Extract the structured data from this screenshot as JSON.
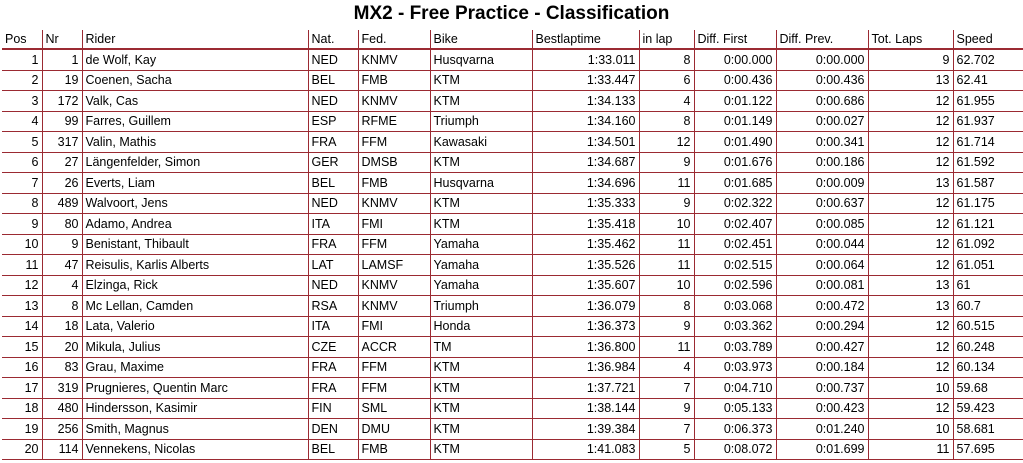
{
  "title": "MX2 - Free Practice - Classification",
  "headers": [
    "Pos",
    "Nr",
    "Rider",
    "Nat.",
    "Fed.",
    "Bike",
    "Bestlaptime",
    "in lap",
    "Diff. First",
    "Diff. Prev.",
    "Tot. Laps",
    "Speed"
  ],
  "rows": [
    [
      "1",
      "1",
      "de Wolf, Kay",
      "NED",
      "KNMV",
      "Husqvarna",
      "1:33.011",
      "8",
      "0:00.000",
      "0:00.000",
      "9",
      "62.702"
    ],
    [
      "2",
      "19",
      "Coenen, Sacha",
      "BEL",
      "FMB",
      "KTM",
      "1:33.447",
      "6",
      "0:00.436",
      "0:00.436",
      "13",
      "62.41"
    ],
    [
      "3",
      "172",
      "Valk, Cas",
      "NED",
      "KNMV",
      "KTM",
      "1:34.133",
      "4",
      "0:01.122",
      "0:00.686",
      "12",
      "61.955"
    ],
    [
      "4",
      "99",
      "Farres, Guillem",
      "ESP",
      "RFME",
      "Triumph",
      "1:34.160",
      "8",
      "0:01.149",
      "0:00.027",
      "12",
      "61.937"
    ],
    [
      "5",
      "317",
      "Valin, Mathis",
      "FRA",
      "FFM",
      "Kawasaki",
      "1:34.501",
      "12",
      "0:01.490",
      "0:00.341",
      "12",
      "61.714"
    ],
    [
      "6",
      "27",
      "Längenfelder, Simon",
      "GER",
      "DMSB",
      "KTM",
      "1:34.687",
      "9",
      "0:01.676",
      "0:00.186",
      "12",
      "61.592"
    ],
    [
      "7",
      "26",
      "Everts, Liam",
      "BEL",
      "FMB",
      "Husqvarna",
      "1:34.696",
      "11",
      "0:01.685",
      "0:00.009",
      "13",
      "61.587"
    ],
    [
      "8",
      "489",
      "Walvoort, Jens",
      "NED",
      "KNMV",
      "KTM",
      "1:35.333",
      "9",
      "0:02.322",
      "0:00.637",
      "12",
      "61.175"
    ],
    [
      "9",
      "80",
      "Adamo, Andrea",
      "ITA",
      "FMI",
      "KTM",
      "1:35.418",
      "10",
      "0:02.407",
      "0:00.085",
      "12",
      "61.121"
    ],
    [
      "10",
      "9",
      "Benistant, Thibault",
      "FRA",
      "FFM",
      "Yamaha",
      "1:35.462",
      "11",
      "0:02.451",
      "0:00.044",
      "12",
      "61.092"
    ],
    [
      "11",
      "47",
      "Reisulis, Karlis Alberts",
      "LAT",
      "LAMSF",
      "Yamaha",
      "1:35.526",
      "11",
      "0:02.515",
      "0:00.064",
      "12",
      "61.051"
    ],
    [
      "12",
      "4",
      "Elzinga, Rick",
      "NED",
      "KNMV",
      "Yamaha",
      "1:35.607",
      "10",
      "0:02.596",
      "0:00.081",
      "13",
      "61"
    ],
    [
      "13",
      "8",
      "Mc Lellan, Camden",
      "RSA",
      "KNMV",
      "Triumph",
      "1:36.079",
      "8",
      "0:03.068",
      "0:00.472",
      "13",
      "60.7"
    ],
    [
      "14",
      "18",
      "Lata, Valerio",
      "ITA",
      "FMI",
      "Honda",
      "1:36.373",
      "9",
      "0:03.362",
      "0:00.294",
      "12",
      "60.515"
    ],
    [
      "15",
      "20",
      "Mikula, Julius",
      "CZE",
      "ACCR",
      "TM",
      "1:36.800",
      "11",
      "0:03.789",
      "0:00.427",
      "12",
      "60.248"
    ],
    [
      "16",
      "83",
      "Grau, Maxime",
      "FRA",
      "FFM",
      "KTM",
      "1:36.984",
      "4",
      "0:03.973",
      "0:00.184",
      "12",
      "60.134"
    ],
    [
      "17",
      "319",
      "Prugnieres, Quentin Marc",
      "FRA",
      "FFM",
      "KTM",
      "1:37.721",
      "7",
      "0:04.710",
      "0:00.737",
      "10",
      "59.68"
    ],
    [
      "18",
      "480",
      "Hindersson, Kasimir",
      "FIN",
      "SML",
      "KTM",
      "1:38.144",
      "9",
      "0:05.133",
      "0:00.423",
      "12",
      "59.423"
    ],
    [
      "19",
      "256",
      "Smith, Magnus",
      "DEN",
      "DMU",
      "KTM",
      "1:39.384",
      "7",
      "0:06.373",
      "0:01.240",
      "10",
      "58.681"
    ],
    [
      "20",
      "114",
      "Vennekens, Nicolas",
      "BEL",
      "FMB",
      "KTM",
      "1:41.083",
      "5",
      "0:08.072",
      "0:01.699",
      "11",
      "57.695"
    ]
  ],
  "colors": {
    "grid": "#9b2a32"
  }
}
